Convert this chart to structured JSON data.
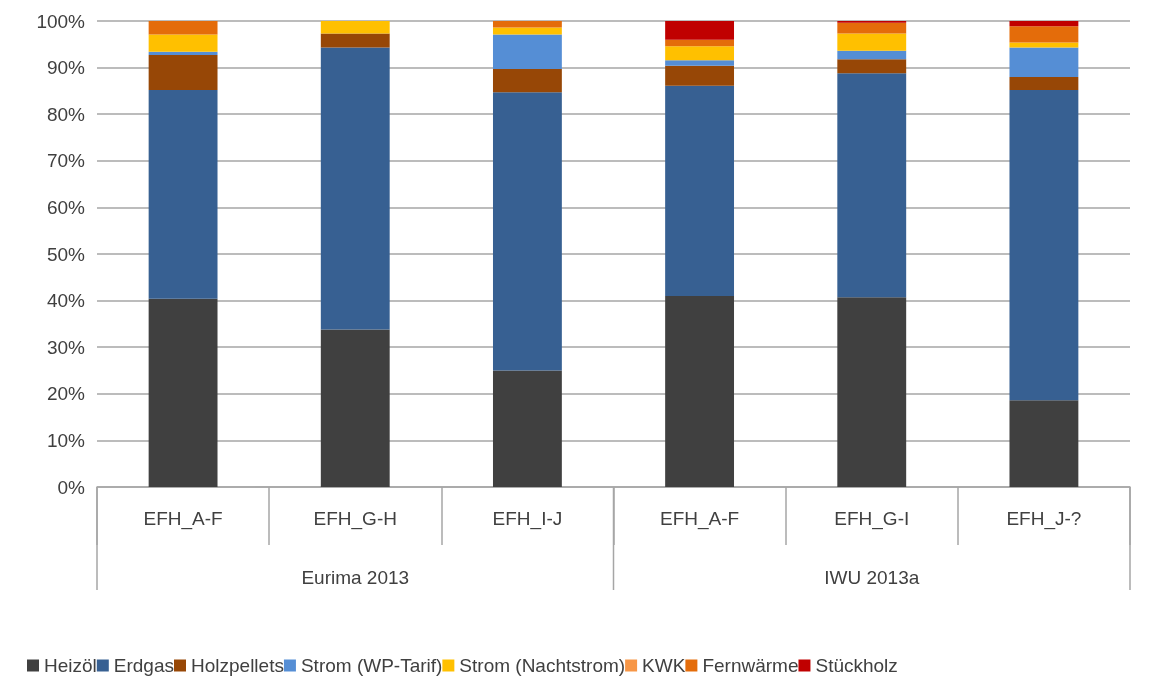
{
  "chart_data": {
    "type": "bar",
    "stacked": true,
    "categories": [
      "EFH_A-F",
      "EFH_G-H",
      "EFH_I-J",
      "EFH_A-F",
      "EFH_G-I",
      "EFH_J-?"
    ],
    "series": [
      {
        "name": "Heizöl",
        "color": "#404040",
        "values": [
          40.4,
          33.8,
          25.0,
          41.0,
          40.7,
          18.6
        ]
      },
      {
        "name": "Erdgas",
        "color": "#376092",
        "values": [
          44.8,
          60.5,
          59.7,
          45.1,
          48.1,
          66.6
        ]
      },
      {
        "name": "Holzpellets",
        "color": "#974706",
        "values": [
          7.5,
          3.0,
          5.0,
          4.3,
          3.0,
          2.8
        ]
      },
      {
        "name": "Strom (WP-Tarif)",
        "color": "#558ed5",
        "values": [
          0.7,
          0,
          7.4,
          1.2,
          1.8,
          6.3
        ]
      },
      {
        "name": "Strom (Nachtstrom)",
        "color": "#ffc000",
        "values": [
          3.7,
          2.7,
          1.5,
          3.0,
          3.7,
          1.1
        ]
      },
      {
        "name": "KWK",
        "color": "#f79646",
        "values": [
          0,
          0,
          0,
          0,
          0,
          0
        ]
      },
      {
        "name": "Fernwärme",
        "color": "#e46c0a",
        "values": [
          2.9,
          0,
          1.4,
          1.4,
          2.3,
          3.5
        ]
      },
      {
        "name": "Stückholz",
        "color": "#c00000",
        "values": [
          0,
          0,
          0,
          4.0,
          0.4,
          1.1
        ]
      }
    ],
    "ylim": [
      0,
      100
    ],
    "yticks": [
      {
        "value": 0,
        "label": "0%"
      },
      {
        "value": 10,
        "label": "10%"
      },
      {
        "value": 20,
        "label": "20%"
      },
      {
        "value": 30,
        "label": "30%"
      },
      {
        "value": 40,
        "label": "40%"
      },
      {
        "value": 50,
        "label": "50%"
      },
      {
        "value": 60,
        "label": "60%"
      },
      {
        "value": 70,
        "label": "70%"
      },
      {
        "value": 80,
        "label": "80%"
      },
      {
        "value": 90,
        "label": "90%"
      },
      {
        "value": 100,
        "label": "100%"
      }
    ],
    "grid": "y",
    "legend": "bottom",
    "annotations": [
      "Eurima 2013",
      "IWU 2013a"
    ]
  }
}
